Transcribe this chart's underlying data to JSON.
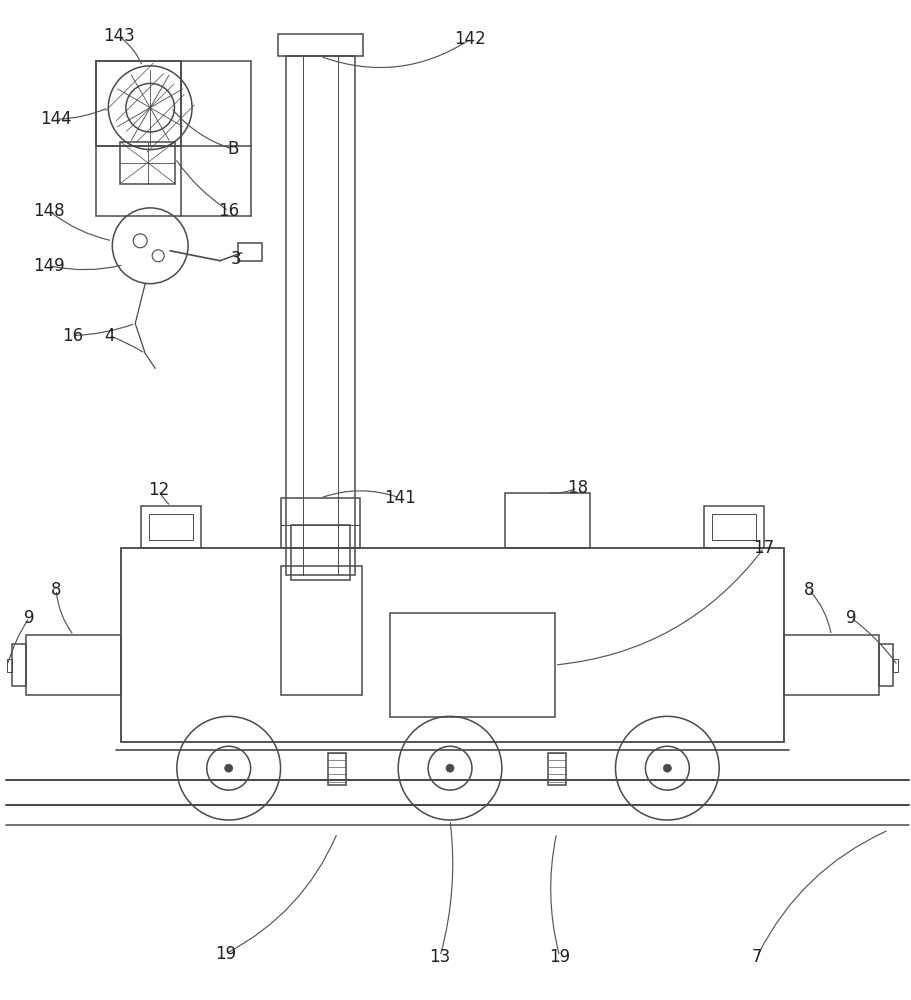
{
  "bg_color": "#ffffff",
  "line_color": "#4a4a4a",
  "lw": 1.1,
  "fig_width": 9.11,
  "fig_height": 10.0
}
